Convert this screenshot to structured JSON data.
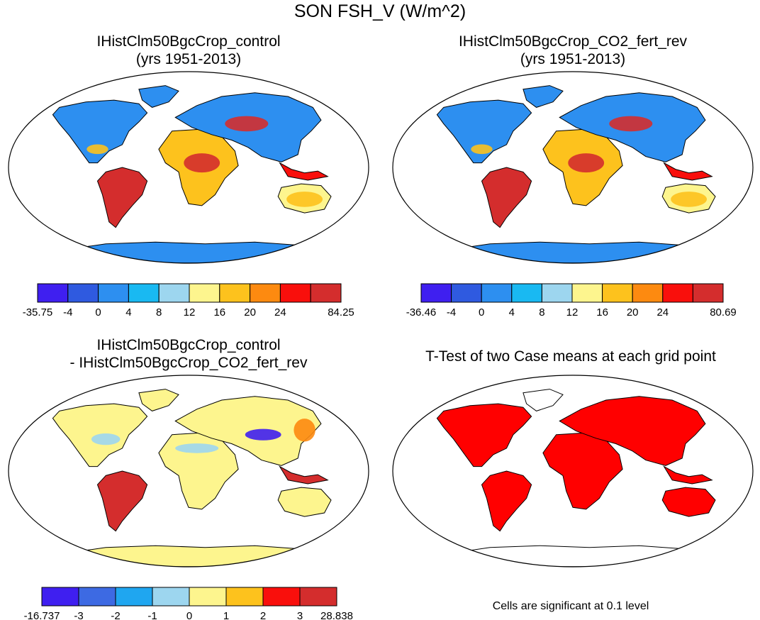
{
  "figure": {
    "title": "SON FSH_V (W/m^2)"
  },
  "panels": [
    {
      "id": "control",
      "title_line1": "IHistClm50BgcCrop_control",
      "title_line2": "(yrs 1951-2013)",
      "colorbar": {
        "labels": [
          "-35.75",
          "-4",
          "0",
          "4",
          "8",
          "12",
          "16",
          "20",
          "24",
          "84.25"
        ],
        "colors": [
          "#3f1ff0",
          "#2f5ae0",
          "#2d8ff0",
          "#19b9f2",
          "#9dd6ef",
          "#fdf58e",
          "#fdc21d",
          "#fd8a10",
          "#f90f0c",
          "#d42d2d"
        ]
      }
    },
    {
      "id": "co2_fert_rev",
      "title_line1": "IHistClm50BgcCrop_CO2_fert_rev",
      "title_line2": "(yrs 1951-2013)",
      "colorbar": {
        "labels": [
          "-36.46",
          "-4",
          "0",
          "4",
          "8",
          "12",
          "16",
          "20",
          "24",
          "80.69"
        ],
        "colors": [
          "#3f1ff0",
          "#2f5ae0",
          "#2d8ff0",
          "#19b9f2",
          "#9dd6ef",
          "#fdf58e",
          "#fdc21d",
          "#fd8a10",
          "#f90f0c",
          "#d42d2d"
        ]
      }
    },
    {
      "id": "difference",
      "title_line1": "IHistClm50BgcCrop_control",
      "title_line2": "- IHistClm50BgcCrop_CO2_fert_rev",
      "colorbar": {
        "labels": [
          "-16.737",
          "-3",
          "-2",
          "-1",
          "0",
          "1",
          "2",
          "3",
          "28.838"
        ],
        "colors": [
          "#3f1ff0",
          "#3d6ae3",
          "#1fa6f0",
          "#9dd6ef",
          "#fdf58e",
          "#fdc21d",
          "#f90f0c",
          "#d42d2d"
        ]
      }
    },
    {
      "id": "ttest",
      "title_line1": "T-Test of two Case means at each grid point",
      "note": "Cells are significant at 0.1 level",
      "significant_color": "#ff0000"
    }
  ]
}
